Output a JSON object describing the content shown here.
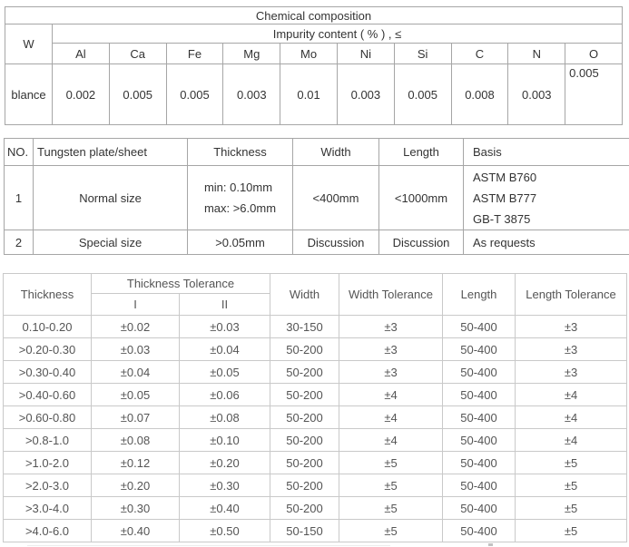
{
  "colors": {
    "table_border_dark": "#a6a6a6",
    "table_border_light": "#c9c9c9",
    "text_dark": "#333333",
    "text_gray": "#555555"
  },
  "chemical_table": {
    "title": "Chemical composition",
    "w_header": "W",
    "impurity_header": "Impurity content ( % ) , ≤",
    "elements": [
      "Al",
      "Ca",
      "Fe",
      "Mg",
      "Mo",
      "Ni",
      "Si",
      "C",
      "N",
      "O"
    ],
    "row_label": "blance",
    "values": [
      "0.002",
      "0.005",
      "0.005",
      "0.003",
      "0.01",
      "0.003",
      "0.005",
      "0.008",
      "0.003",
      "0.005"
    ]
  },
  "size_table": {
    "headers": [
      "NO.",
      "Tungsten plate/sheet",
      "Thickness",
      "Width",
      "Length",
      "Basis"
    ],
    "rows": [
      {
        "no": "1",
        "name": "Normal size",
        "thickness": [
          "min: 0.10mm",
          "max: >6.0mm"
        ],
        "width": "<400mm",
        "length": "<1000mm",
        "basis": [
          "ASTM B760",
          "ASTM B777",
          "GB-T 3875"
        ]
      },
      {
        "no": "2",
        "name": "Special size",
        "thickness": [
          ">0.05mm"
        ],
        "width": "Discussion",
        "length": "Discussion",
        "basis": [
          "As requests"
        ]
      }
    ]
  },
  "tolerance_table": {
    "headers": {
      "thickness": "Thickness",
      "thickness_tolerance": "Thickness Tolerance",
      "col_i": "I",
      "col_ii": "II",
      "width": "Width",
      "width_tolerance": "Width Tolerance",
      "length": "Length",
      "length_tolerance": "Length Tolerance"
    },
    "rows": [
      [
        "0.10-0.20",
        "±0.02",
        "±0.03",
        "30-150",
        "±3",
        "50-400",
        "±3"
      ],
      [
        ">0.20-0.30",
        "±0.03",
        "±0.04",
        "50-200",
        "±3",
        "50-400",
        "±3"
      ],
      [
        ">0.30-0.40",
        "±0.04",
        "±0.05",
        "50-200",
        "±3",
        "50-400",
        "±3"
      ],
      [
        ">0.40-0.60",
        "±0.05",
        "±0.06",
        "50-200",
        "±4",
        "50-400",
        "±4"
      ],
      [
        ">0.60-0.80",
        "±0.07",
        "±0.08",
        "50-200",
        "±4",
        "50-400",
        "±4"
      ],
      [
        ">0.8-1.0",
        "±0.08",
        "±0.10",
        "50-200",
        "±4",
        "50-400",
        "±4"
      ],
      [
        ">1.0-2.0",
        "±0.12",
        "±0.20",
        "50-200",
        "±5",
        "50-400",
        "±5"
      ],
      [
        ">2.0-3.0",
        "±0.20",
        "±0.30",
        "50-200",
        "±5",
        "50-400",
        "±5"
      ],
      [
        ">3.0-4.0",
        "±0.30",
        "±0.40",
        "50-200",
        "±5",
        "50-400",
        "±5"
      ],
      [
        ">4.0-6.0",
        "±0.40",
        "±0.50",
        "50-150",
        "±5",
        "50-400",
        "±5"
      ]
    ]
  }
}
